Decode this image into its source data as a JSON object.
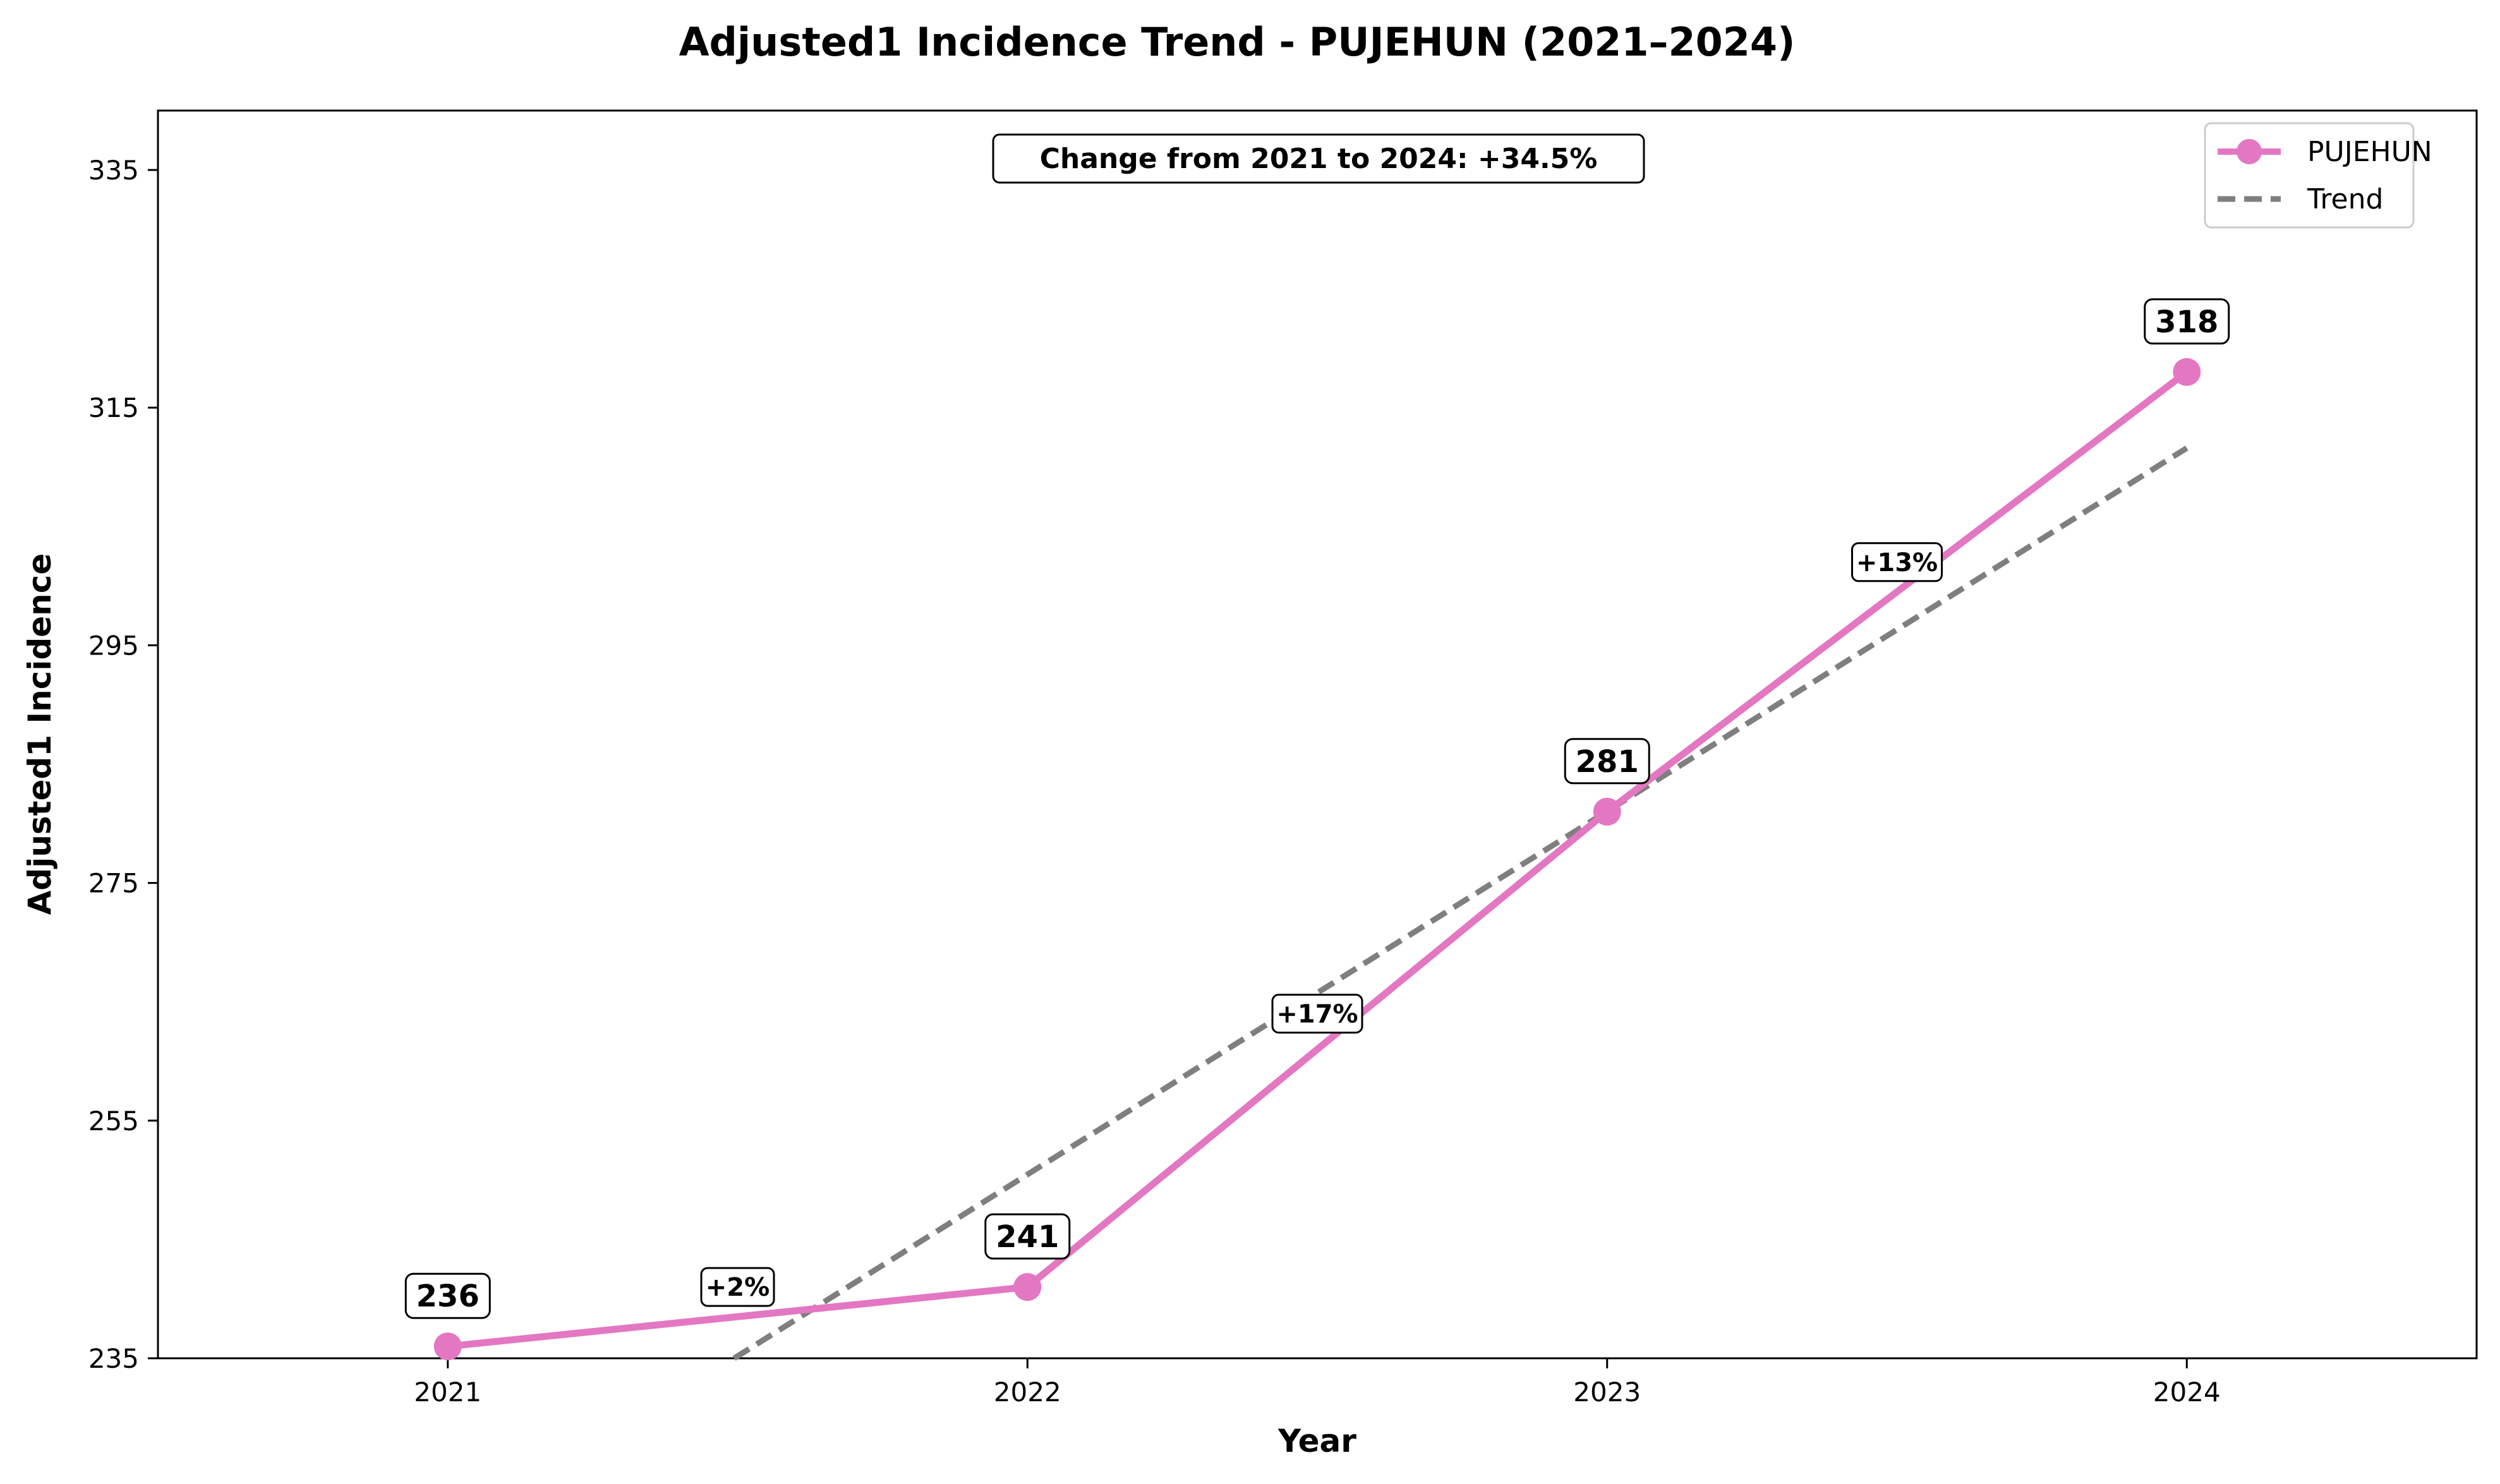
{
  "chart_data": {
    "type": "line",
    "title": "Adjusted1 Incidence Trend - PUJEHUN (2021–2024)",
    "xlabel": "Year",
    "ylabel": "Adjusted1 Incidence",
    "x": [
      "2021",
      "2022",
      "2023",
      "2024"
    ],
    "xlim": [
      2020.5,
      2024.5
    ],
    "ylim": [
      235,
      340
    ],
    "yticks": [
      235,
      255,
      275,
      295,
      315,
      335
    ],
    "grid": false,
    "legend_position": "top-right",
    "series": [
      {
        "name": "PUJEHUN",
        "values": [
          236,
          241,
          281,
          318
        ],
        "value_labels": [
          "236",
          "241",
          "281",
          "318"
        ],
        "color": "#e377c2",
        "marker": "circle"
      },
      {
        "name": "Trend",
        "style": "dashed",
        "color": "#7f7f7f",
        "start": [
          2021,
          219.9
        ],
        "end": [
          2024,
          311.6
        ]
      }
    ],
    "pct_changes": [
      {
        "x": 2021.5,
        "y": 241,
        "label": "+2%"
      },
      {
        "x": 2022.5,
        "y": 264,
        "label": "+17%"
      },
      {
        "x": 2023.5,
        "y": 302,
        "label": "+13%"
      }
    ],
    "annotation": "Change from 2021 to 2024: +34.5%"
  }
}
